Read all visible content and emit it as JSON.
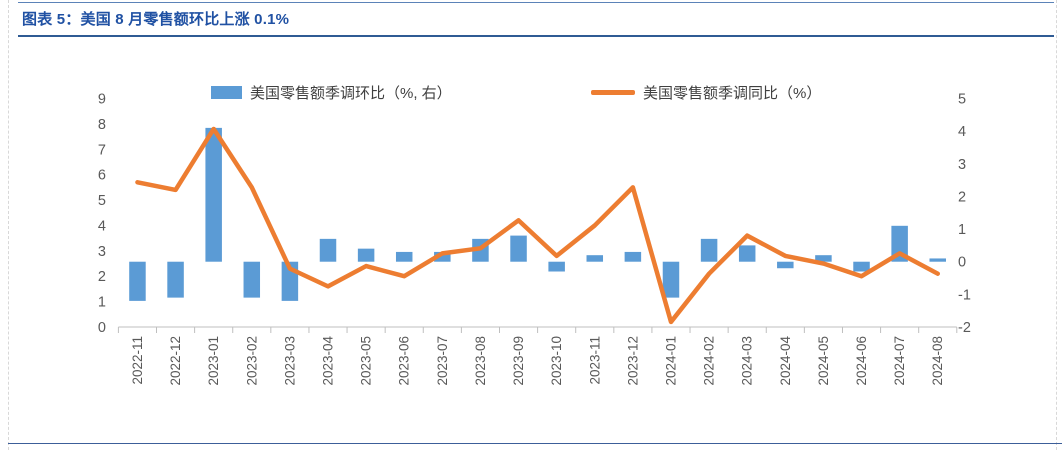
{
  "page": {
    "title": "图表 5：美国 8 月零售额环比上涨 0.1%"
  },
  "colors": {
    "bar": "#5B9BD5",
    "line": "#ED7D31",
    "title_blue": "#2051a3",
    "axis_text": "#595959",
    "axis_line": "#bfbfbf"
  },
  "chart_data": {
    "type": "combo",
    "title": "",
    "grid": false,
    "legend_position": "top",
    "categories": [
      "2022-11",
      "2022-12",
      "2023-01",
      "2023-02",
      "2023-03",
      "2023-04",
      "2023-05",
      "2023-06",
      "2023-07",
      "2023-08",
      "2023-09",
      "2023-10",
      "2023-11",
      "2023-12",
      "2024-01",
      "2024-02",
      "2024-03",
      "2024-04",
      "2024-05",
      "2024-06",
      "2024-07",
      "2024-08"
    ],
    "series": [
      {
        "name": "美国零售额季调环比（%, 右）",
        "type": "bar",
        "axis": "right",
        "color": "#5B9BD5",
        "values": [
          -1.2,
          -1.1,
          4.1,
          -1.1,
          -1.2,
          0.7,
          0.4,
          0.3,
          0.3,
          0.7,
          0.8,
          -0.3,
          0.2,
          0.3,
          -1.1,
          0.7,
          0.5,
          -0.2,
          0.2,
          -0.3,
          1.1,
          0.1
        ]
      },
      {
        "name": "美国零售额季调同比（%）",
        "type": "line",
        "axis": "left",
        "color": "#ED7D31",
        "values": [
          5.7,
          5.4,
          7.8,
          5.5,
          2.3,
          1.6,
          2.4,
          2.0,
          2.9,
          3.1,
          4.2,
          2.8,
          4.0,
          5.5,
          0.2,
          2.1,
          3.6,
          2.8,
          2.5,
          2.0,
          2.9,
          2.1
        ]
      }
    ],
    "left_axis": {
      "min": 0,
      "max": 9,
      "step": 1,
      "ticks": [
        "0",
        "1",
        "2",
        "3",
        "4",
        "5",
        "6",
        "7",
        "8",
        "9"
      ]
    },
    "right_axis": {
      "min": -2,
      "max": 5,
      "step": 1,
      "ticks": [
        "-2",
        "-1",
        "0",
        "1",
        "2",
        "3",
        "4",
        "5"
      ]
    }
  }
}
